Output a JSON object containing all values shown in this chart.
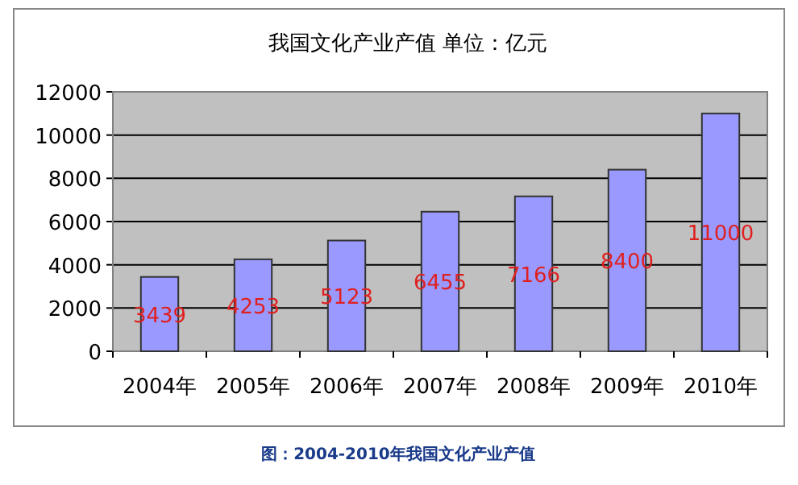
{
  "chart_data": {
    "type": "bar",
    "title": "我国文化产业产值 单位：亿元",
    "categories": [
      "2004年",
      "2005年",
      "2006年",
      "2007年",
      "2008年",
      "2009年",
      "2010年"
    ],
    "values": [
      3439,
      4253,
      5123,
      6455,
      7166,
      8400,
      11000
    ],
    "color": "#9999ff",
    "ylim": [
      0,
      12000
    ],
    "yticks": [
      0,
      2000,
      4000,
      6000,
      8000,
      10000,
      12000
    ],
    "grid": "y",
    "data_labels": true,
    "annotations": [
      "图：2004-2010年我国文化产业产值"
    ]
  }
}
